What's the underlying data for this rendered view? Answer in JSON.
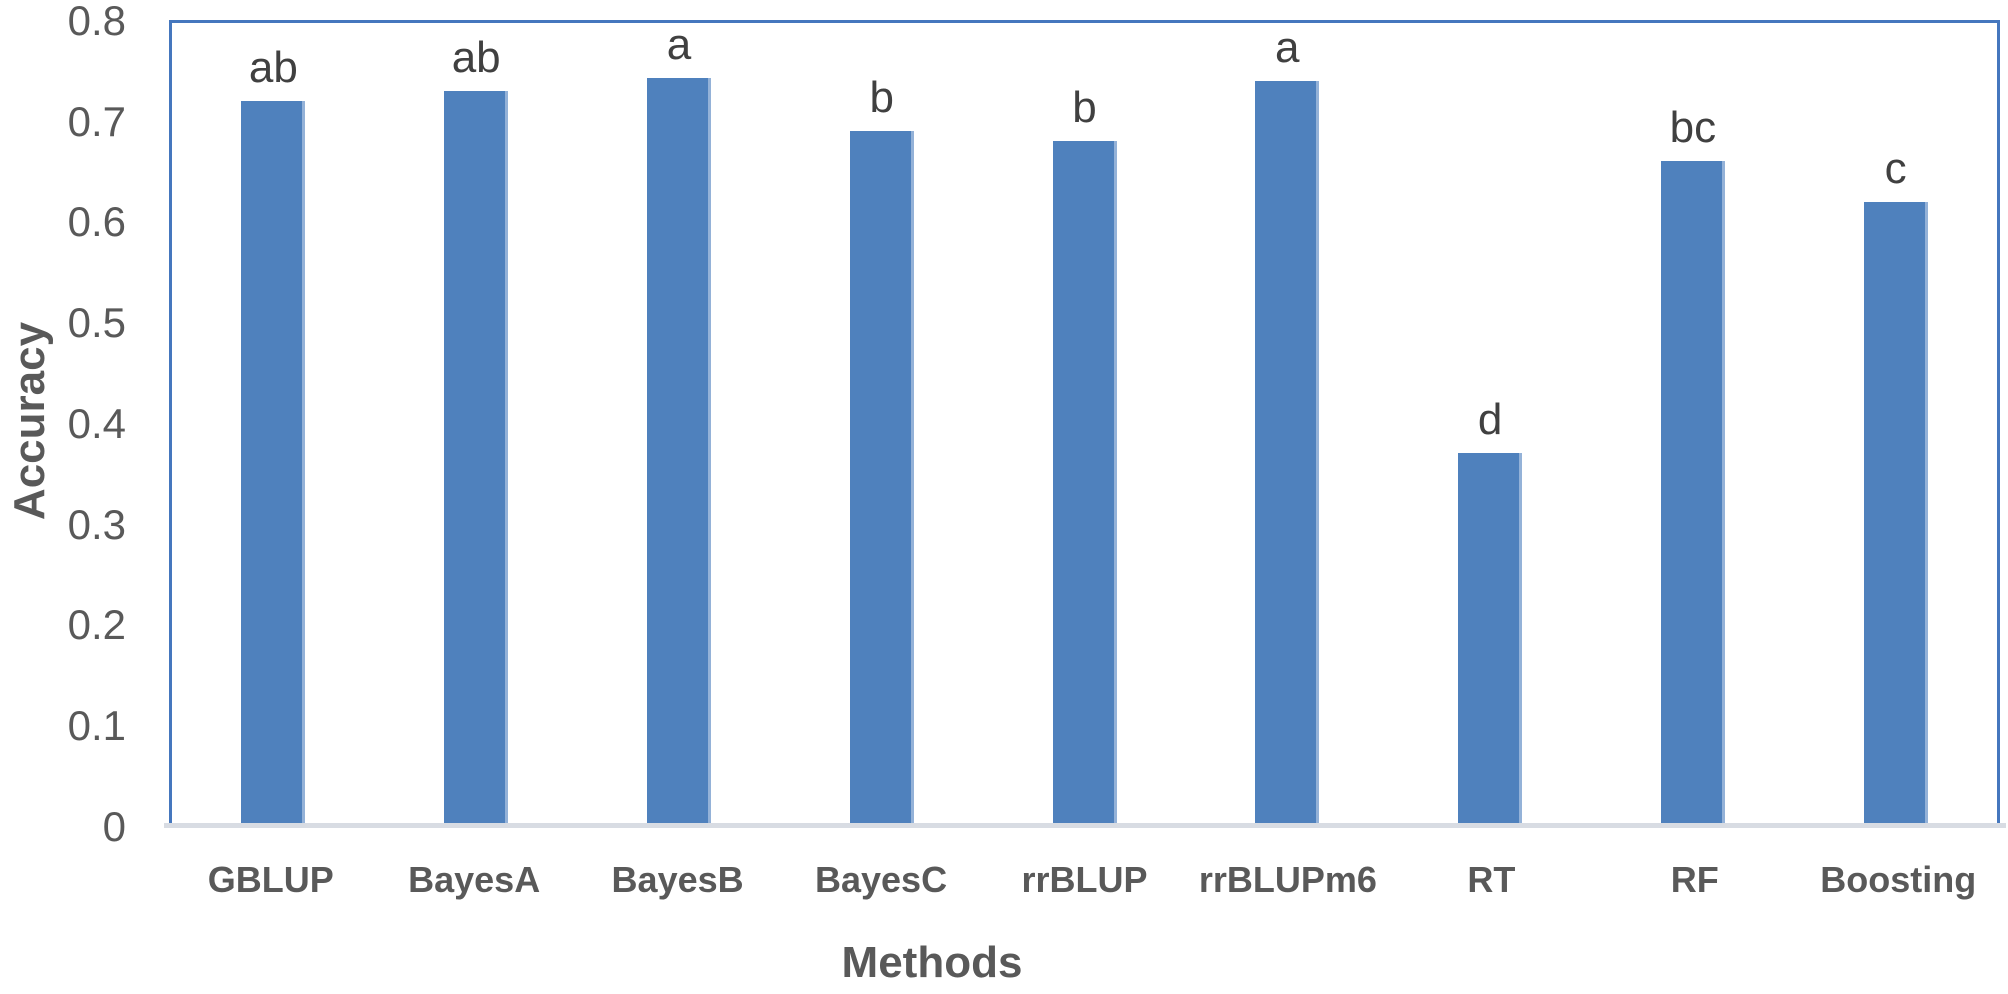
{
  "chart_data": {
    "type": "bar",
    "title": "",
    "xlabel": "Methods",
    "ylabel": "Accuracy",
    "categories": [
      "GBLUP",
      "BayesA",
      "BayesB",
      "BayesC",
      "rrBLUP",
      "rrBLUPm6",
      "RT",
      "RF",
      "Boosting"
    ],
    "values": [
      0.72,
      0.73,
      0.75,
      0.69,
      0.68,
      0.74,
      0.37,
      0.66,
      0.62
    ],
    "significance_letters": [
      "ab",
      "ab",
      "a",
      "b",
      "b",
      "a",
      "d",
      "bc",
      "c"
    ],
    "ylim": [
      0,
      0.8
    ],
    "ytick_labels": [
      "0.8",
      "0.7",
      "0.6",
      "0.5",
      "0.4",
      "0.3",
      "0.2",
      "0.1",
      "0"
    ],
    "grid": "off",
    "legend": "none",
    "bar_color": "#4F81BD",
    "bar_edge_color": "#94B2D8",
    "plot_border_color": "#4577BE",
    "axis_line_color": "#D8DCE3",
    "axis_text_color": "#595959",
    "annotation_color": "#404040"
  }
}
